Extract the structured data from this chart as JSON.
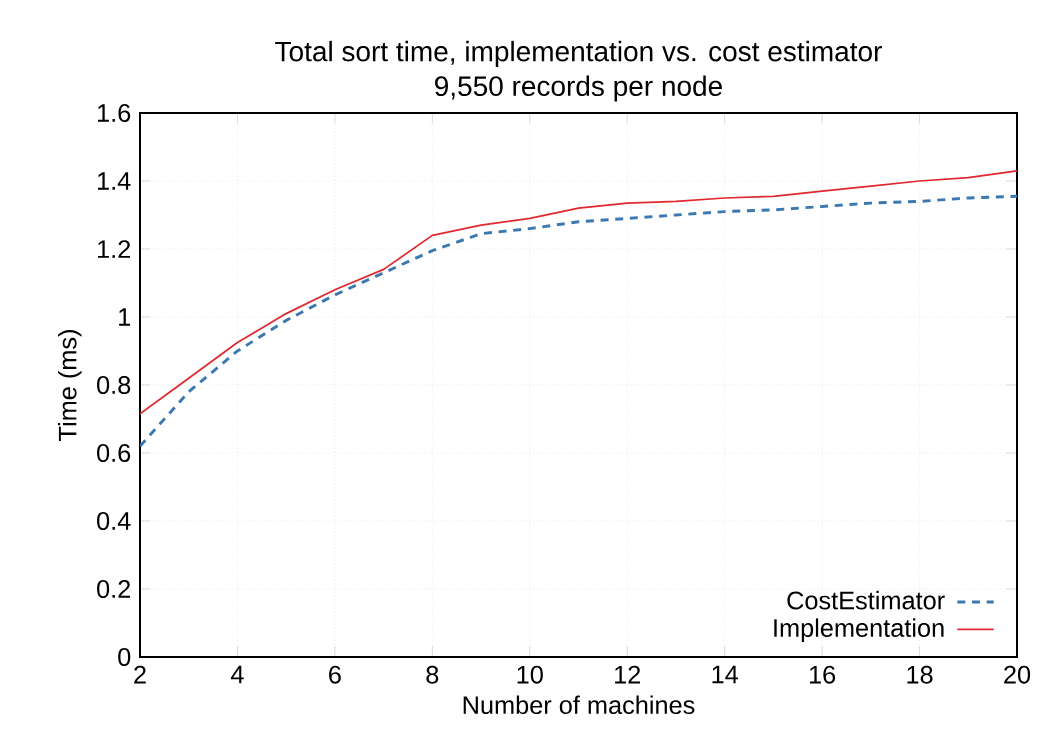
{
  "chart_data": {
    "type": "line",
    "title": "Total sort time, implementation vs. cost estimator",
    "subtitle": "9,550 records per node",
    "xlabel": "Number of machines",
    "ylabel": "Time (ms)",
    "x": [
      2,
      3,
      4,
      5,
      6,
      7,
      8,
      9,
      10,
      11,
      12,
      13,
      14,
      15,
      16,
      17,
      18,
      19,
      20
    ],
    "series": [
      {
        "name": "CostEstimator",
        "color": "#3b78b0",
        "line_style": "dashed",
        "values": [
          0.62,
          0.78,
          0.9,
          0.99,
          1.065,
          1.13,
          1.195,
          1.245,
          1.26,
          1.28,
          1.29,
          1.3,
          1.31,
          1.315,
          1.325,
          1.335,
          1.34,
          1.35,
          1.355
        ]
      },
      {
        "name": "Implementation",
        "color": "#e0282e",
        "line_style": "solid",
        "values": [
          0.715,
          0.82,
          0.925,
          1.01,
          1.08,
          1.14,
          1.24,
          1.27,
          1.29,
          1.32,
          1.335,
          1.34,
          1.35,
          1.355,
          1.37,
          1.385,
          1.4,
          1.41,
          1.43
        ]
      }
    ],
    "xlim": [
      2,
      20
    ],
    "ylim": [
      0,
      1.6
    ],
    "xticks": [
      2,
      4,
      6,
      8,
      10,
      12,
      14,
      16,
      18,
      20
    ],
    "yticks": [
      0,
      0.2,
      0.4,
      0.6,
      0.8,
      1,
      1.2,
      1.4,
      1.6
    ],
    "grid": true,
    "legend": "bottom right"
  }
}
